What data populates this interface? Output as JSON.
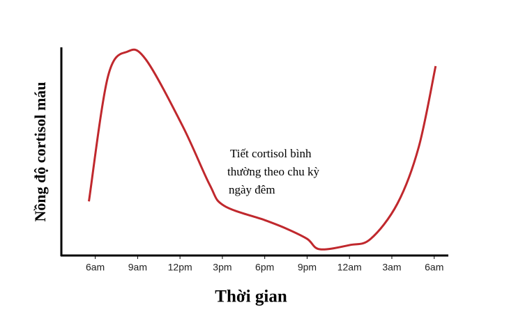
{
  "chart_data": {
    "type": "line",
    "x_label": "Thời gian",
    "y_label": "Nồng độ cortisol máu",
    "annotation": [
      "Tiết cortisol bình",
      "thường theo chu kỳ",
      "ngày đêm"
    ],
    "xlim": [
      -2.4,
      25
    ],
    "ylim": [
      0,
      100
    ],
    "xticks": [
      {
        "value": 0,
        "label": "6am"
      },
      {
        "value": 3,
        "label": "9am"
      },
      {
        "value": 6,
        "label": "12pm"
      },
      {
        "value": 9,
        "label": "3pm"
      },
      {
        "value": 12,
        "label": "6pm"
      },
      {
        "value": 15,
        "label": "9pm"
      },
      {
        "value": 18,
        "label": "12am"
      },
      {
        "value": 21,
        "label": "3am"
      },
      {
        "value": 24,
        "label": "6am"
      }
    ],
    "x": [
      -0.45,
      0.9,
      2.3,
      3.6,
      6.2,
      8.1,
      9.1,
      12,
      13.5,
      15,
      15.9,
      18,
      19.5,
      21.4,
      22.9,
      24.1
    ],
    "series": [
      {
        "color": "#c0282d",
        "values": [
          26,
          86,
          98,
          94,
          62,
          34,
          24,
          17,
          13,
          8,
          3,
          5,
          8,
          25,
          52,
          91
        ]
      }
    ]
  }
}
